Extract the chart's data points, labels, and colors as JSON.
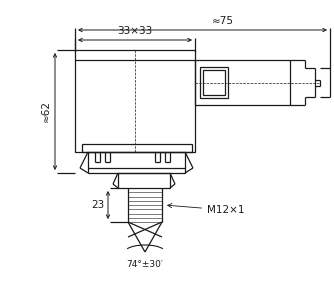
{
  "background_color": "#ffffff",
  "line_color": "#1a1a1a",
  "annotations": {
    "dim_75": "≈75",
    "dim_33x33": "33×33",
    "dim_62": "≈62",
    "dim_23": "23",
    "dim_M12x1": "M12×1",
    "dim_angle": "74°±30′"
  }
}
